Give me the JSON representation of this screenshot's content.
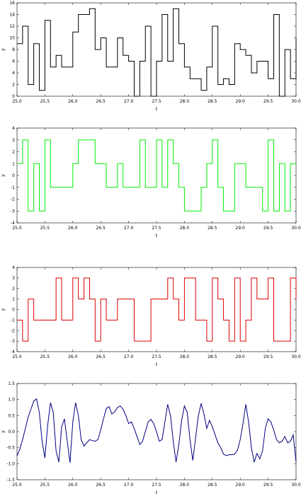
{
  "chart_data": [
    {
      "type": "line",
      "step": true,
      "xlabel": "t",
      "ylabel": "y",
      "xlim": [
        25.0,
        30.0
      ],
      "ylim": [
        0,
        16
      ],
      "x_ticks": [
        "25.0",
        "25.5",
        "26.0",
        "26.5",
        "27.0",
        "27.5",
        "28.0",
        "28.5",
        "29.0",
        "29.5",
        "30.0"
      ],
      "y_ticks": [
        "0",
        "2",
        "4",
        "6",
        "8",
        "10",
        "12",
        "14",
        "16"
      ],
      "grid": false,
      "series": [
        {
          "color": "#000000",
          "x": [
            25.0,
            25.1,
            25.2,
            25.3,
            25.4,
            25.5,
            25.6,
            25.7,
            25.8,
            25.9,
            26.0,
            26.1,
            26.2,
            26.3,
            26.4,
            26.5,
            26.6,
            26.7,
            26.8,
            26.9,
            27.0,
            27.1,
            27.2,
            27.3,
            27.4,
            27.5,
            27.6,
            27.7,
            27.8,
            27.9,
            28.0,
            28.1,
            28.2,
            28.3,
            28.4,
            28.5,
            28.6,
            28.7,
            28.8,
            28.9,
            29.0,
            29.1,
            29.2,
            29.3,
            29.4,
            29.5,
            29.6,
            29.7,
            29.8,
            29.9,
            30.0
          ],
          "y": [
            9,
            12,
            2,
            9,
            1,
            13,
            5,
            7,
            5,
            5,
            11,
            14,
            14,
            15,
            8,
            10,
            5,
            5,
            10,
            7,
            6,
            0,
            6,
            12,
            0,
            6,
            14,
            6,
            15,
            9,
            5,
            3,
            3,
            1,
            5,
            12,
            2,
            3,
            2,
            9,
            8,
            7,
            4,
            6,
            6,
            3,
            14,
            0,
            8,
            3,
            10
          ]
        }
      ]
    },
    {
      "type": "line",
      "step": true,
      "xlabel": "t",
      "ylabel": "y",
      "xlim": [
        25.0,
        30.0
      ],
      "ylim": [
        -4,
        4
      ],
      "x_ticks": [
        "25.0",
        "25.5",
        "26.0",
        "26.5",
        "27.0",
        "27.5",
        "28.0",
        "28.5",
        "29.0",
        "29.5",
        "30.0"
      ],
      "y_ticks": [
        "-4",
        "-3",
        "-2",
        "-1",
        "0",
        "1",
        "2",
        "3",
        "4"
      ],
      "grid": false,
      "series": [
        {
          "color": "#00ee00",
          "x": [
            25.0,
            25.1,
            25.2,
            25.3,
            25.4,
            25.5,
            25.6,
            25.7,
            25.8,
            25.9,
            26.0,
            26.1,
            26.2,
            26.3,
            26.4,
            26.5,
            26.6,
            26.7,
            26.8,
            26.9,
            27.0,
            27.1,
            27.2,
            27.3,
            27.4,
            27.5,
            27.6,
            27.7,
            27.8,
            27.9,
            28.0,
            28.1,
            28.2,
            28.3,
            28.4,
            28.5,
            28.6,
            28.7,
            28.8,
            28.9,
            29.0,
            29.1,
            29.2,
            29.3,
            29.4,
            29.5,
            29.6,
            29.7,
            29.8,
            29.9,
            30.0
          ],
          "y": [
            1,
            3,
            -3,
            1,
            -3,
            3,
            -1,
            -1,
            -1,
            -1,
            1,
            3,
            3,
            3,
            1,
            1,
            -1,
            -1,
            1,
            -1,
            -1,
            -1,
            3,
            -1,
            -1,
            3,
            -1,
            3,
            1,
            -1,
            -3,
            -3,
            -3,
            -1,
            1,
            3,
            -1,
            -3,
            -3,
            1,
            1,
            -1,
            -1,
            -1,
            -3,
            3,
            -3,
            1,
            -3,
            1,
            1
          ]
        }
      ]
    },
    {
      "type": "line",
      "step": true,
      "xlabel": "t",
      "ylabel": "y",
      "xlim": [
        25.0,
        30.0
      ],
      "ylim": [
        -4,
        4
      ],
      "x_ticks": [
        "25.0",
        "25.5",
        "26.0",
        "26.5",
        "27.0",
        "27.5",
        "28.0",
        "28.5",
        "29.0",
        "29.5",
        "30.0"
      ],
      "y_ticks": [
        "-4",
        "-3",
        "-2",
        "-1",
        "0",
        "1",
        "2",
        "3",
        "4"
      ],
      "grid": false,
      "series": [
        {
          "color": "#dd0000",
          "x": [
            25.0,
            25.1,
            25.2,
            25.3,
            25.4,
            25.5,
            25.6,
            25.7,
            25.8,
            25.9,
            26.0,
            26.1,
            26.2,
            26.3,
            26.4,
            26.5,
            26.6,
            26.7,
            26.8,
            26.9,
            27.0,
            27.1,
            27.2,
            27.3,
            27.4,
            27.5,
            27.6,
            27.7,
            27.8,
            27.9,
            28.0,
            28.1,
            28.2,
            28.3,
            28.4,
            28.5,
            28.6,
            28.7,
            28.8,
            28.9,
            29.0,
            29.1,
            29.2,
            29.3,
            29.4,
            29.5,
            29.6,
            29.7,
            29.8,
            29.9,
            30.0
          ],
          "y": [
            -1,
            -3,
            1,
            -1,
            -1,
            -1,
            -1,
            3,
            -1,
            -1,
            3,
            1,
            3,
            1,
            -3,
            1,
            -1,
            -1,
            1,
            1,
            1,
            -3,
            -3,
            -3,
            1,
            1,
            1,
            3,
            1,
            -1,
            3,
            3,
            -1,
            -1,
            -3,
            3,
            1,
            -1,
            -3,
            3,
            -3,
            -1,
            3,
            1,
            1,
            3,
            -3,
            -3,
            -3,
            3,
            1
          ]
        }
      ]
    },
    {
      "type": "line",
      "xlabel": "t",
      "ylabel": "y",
      "xlim": [
        25.0,
        30.0
      ],
      "ylim": [
        -1.5,
        1.5
      ],
      "x_ticks": [
        "25.0",
        "25.5",
        "26.0",
        "26.5",
        "27.0",
        "27.5",
        "28.0",
        "28.5",
        "29.0",
        "29.5",
        "30.0"
      ],
      "y_ticks": [
        "-1.5",
        "-1.0",
        "-0.5",
        "0.0",
        "0.5",
        "1.0",
        "1.5"
      ],
      "grid": false,
      "series": [
        {
          "color": "#000080",
          "x": [
            25.0,
            25.05,
            25.1,
            25.15,
            25.2,
            25.25,
            25.3,
            25.35,
            25.4,
            25.45,
            25.5,
            25.55,
            25.6,
            25.65,
            25.7,
            25.75,
            25.8,
            25.85,
            25.9,
            25.95,
            26.0,
            26.05,
            26.1,
            26.15,
            26.2,
            26.25,
            26.3,
            26.35,
            26.4,
            26.45,
            26.5,
            26.55,
            26.6,
            26.65,
            26.7,
            26.75,
            26.8,
            26.85,
            26.9,
            26.95,
            27.0,
            27.05,
            27.1,
            27.15,
            27.2,
            27.25,
            27.3,
            27.35,
            27.4,
            27.45,
            27.5,
            27.55,
            27.6,
            27.65,
            27.7,
            27.75,
            27.8,
            27.85,
            27.9,
            27.95,
            28.0,
            28.05,
            28.1,
            28.15,
            28.2,
            28.25,
            28.3,
            28.35,
            28.4,
            28.45,
            28.5,
            28.55,
            28.6,
            28.65,
            28.7,
            28.75,
            28.8,
            28.85,
            28.9,
            28.95,
            29.0,
            29.05,
            29.1,
            29.15,
            29.2,
            29.25,
            29.3,
            29.35,
            29.4,
            29.45,
            29.5,
            29.55,
            29.6,
            29.65,
            29.7,
            29.75,
            29.8,
            29.85,
            29.9,
            29.95,
            30.0
          ],
          "y": [
            -0.75,
            -0.55,
            -0.25,
            0.1,
            0.45,
            0.7,
            0.95,
            1.02,
            0.6,
            -0.3,
            -0.82,
            0.2,
            0.9,
            0.6,
            -0.6,
            -0.95,
            0.15,
            0.4,
            -0.3,
            -0.97,
            0.3,
            0.9,
            0.5,
            -0.25,
            -0.45,
            -0.35,
            -0.25,
            -0.28,
            -0.3,
            -0.25,
            0.05,
            0.4,
            0.72,
            0.78,
            0.55,
            0.62,
            0.75,
            0.8,
            0.7,
            0.5,
            0.25,
            0.3,
            0.1,
            -0.15,
            -0.4,
            -0.3,
            0.0,
            0.3,
            0.38,
            0.25,
            0.0,
            -0.3,
            -0.25,
            0.3,
            0.85,
            0.5,
            -0.3,
            -0.95,
            -0.4,
            0.35,
            0.8,
            0.6,
            -0.25,
            -0.9,
            -0.2,
            0.5,
            0.88,
            0.55,
            0.1,
            0.35,
            0.15,
            -0.1,
            -0.35,
            -0.5,
            -0.7,
            -0.75,
            -0.72,
            -0.72,
            -0.7,
            -0.58,
            -0.25,
            0.25,
            0.85,
            0.3,
            -0.5,
            -0.95,
            -0.68,
            -0.85,
            -0.6,
            0.1,
            0.4,
            0.3,
            0.05,
            -0.25,
            -0.35,
            -0.3,
            -0.15,
            -0.35,
            -0.3,
            -0.1,
            -0.95
          ]
        }
      ]
    }
  ]
}
